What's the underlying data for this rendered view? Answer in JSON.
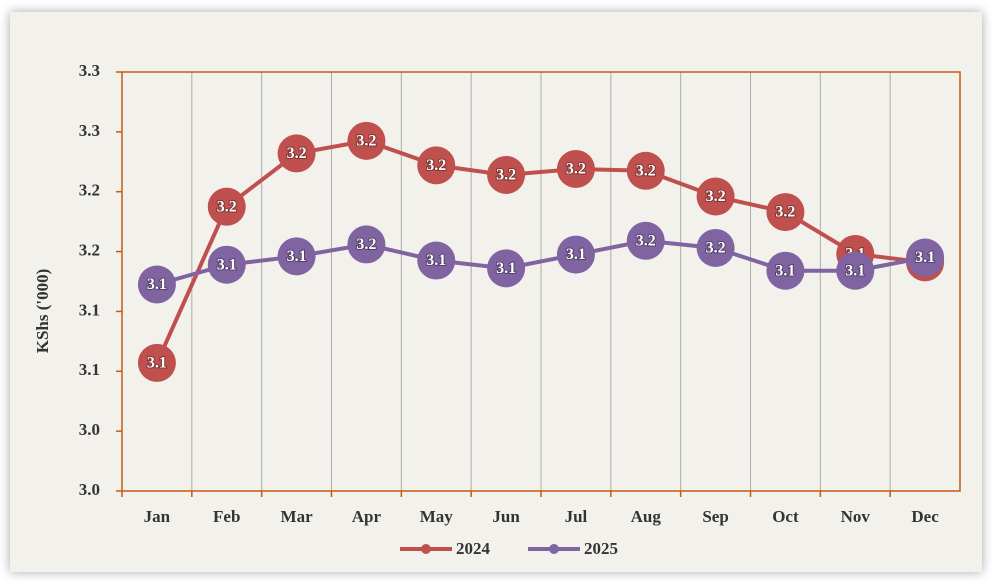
{
  "chart_data": {
    "type": "line",
    "y_label": "KShs ('000)",
    "categories": [
      "Jan",
      "Feb",
      "Mar",
      "Apr",
      "May",
      "Jun",
      "Jul",
      "Aug",
      "Sep",
      "Oct",
      "Nov",
      "Dec"
    ],
    "series": [
      {
        "name": "2024",
        "color": "#c0504d",
        "values": [
          3.057,
          3.1875,
          3.232,
          3.2425,
          3.222,
          3.214,
          3.219,
          3.2175,
          3.196,
          3.183,
          3.148,
          3.141
        ],
        "value_labels": [
          "3.1",
          "3.2",
          "3.2",
          "3.2",
          "3.2",
          "3.2",
          "3.2",
          "3.2",
          "3.2",
          "3.2",
          "3.1",
          "3.1"
        ]
      },
      {
        "name": "2025",
        "color": "#8064a2",
        "values": [
          3.1225,
          3.139,
          3.146,
          3.156,
          3.1425,
          3.136,
          3.1475,
          3.159,
          3.153,
          3.134,
          3.134,
          3.145
        ],
        "value_labels": [
          "3.1",
          "3.1",
          "3.1",
          "3.2",
          "3.1",
          "3.1",
          "3.1",
          "3.2",
          "3.2",
          "3.1",
          "3.1",
          "3.1"
        ]
      }
    ],
    "ylim": [
      2.95,
      3.3
    ],
    "yticks": [
      {
        "value": 2.95,
        "label": "3.0"
      },
      {
        "value": 3.0,
        "label": "3.0"
      },
      {
        "value": 3.05,
        "label": "3.1"
      },
      {
        "value": 3.1,
        "label": "3.1"
      },
      {
        "value": 3.15,
        "label": "3.2"
      },
      {
        "value": 3.2,
        "label": "3.2"
      },
      {
        "value": 3.25,
        "label": "3.3"
      },
      {
        "value": 3.3,
        "label": "3.3"
      }
    ],
    "grid": true,
    "legend": "bottom"
  }
}
